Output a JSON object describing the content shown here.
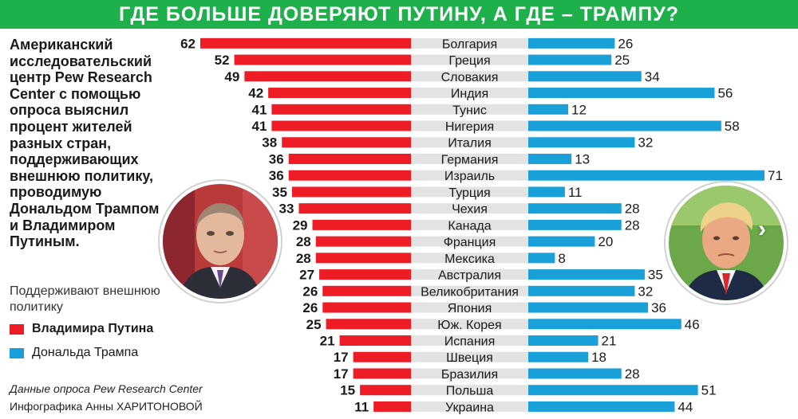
{
  "title": "ГДЕ БОЛЬШЕ ДОВЕРЯЮТ ПУТИНУ, А ГДЕ – ТРАМПУ?",
  "description": "Американский исследовательский центр Pew Research Center с помощью опроса выяснил процент жителей разных стран, поддерживающих внешнюю политику, проводимую Дональдом Трампом и Владимиром Путиным.",
  "legend": {
    "heading": "Поддерживают внешнюю политику",
    "putin": "Владимира Путина",
    "trump": "Дональда Трампа"
  },
  "source": "Данные опроса Pew Research Center",
  "credit": "Инфографика Анны ХАРИТОНОВОЙ",
  "colors": {
    "title_bg": "#1eb04b",
    "putin": "#ee1c25",
    "trump": "#1aa0d8",
    "row_band": "#e3e3e3"
  },
  "icons": {
    "next": "chevron-right-icon"
  },
  "chart_data": {
    "type": "bar",
    "categories": [
      "Болгария",
      "Греция",
      "Словакия",
      "Индия",
      "Тунис",
      "Нигерия",
      "Италия",
      "Германия",
      "Израиль",
      "Турция",
      "Чехия",
      "Канада",
      "Франция",
      "Мексика",
      "Австралия",
      "Великобритания",
      "Япония",
      "Юж. Корея",
      "Испания",
      "Швеция",
      "Бразилия",
      "Польша",
      "Украина"
    ],
    "series": [
      {
        "name": "Владимира Путина",
        "values": [
          62,
          52,
          49,
          42,
          41,
          41,
          38,
          36,
          36,
          35,
          33,
          29,
          28,
          28,
          27,
          26,
          26,
          25,
          21,
          17,
          17,
          15,
          11
        ]
      },
      {
        "name": "Дональда Трампа",
        "values": [
          26,
          25,
          34,
          56,
          12,
          58,
          32,
          13,
          71,
          11,
          28,
          28,
          20,
          8,
          35,
          32,
          36,
          46,
          21,
          18,
          28,
          51,
          44
        ]
      }
    ],
    "title": "ГДЕ БОЛЬШЕ ДОВЕРЯЮТ ПУТИНУ, А ГДЕ – ТРАМПУ?",
    "xlabel": "",
    "ylabel": "",
    "layout": "back-to-back horizontal bars",
    "grid": false
  }
}
